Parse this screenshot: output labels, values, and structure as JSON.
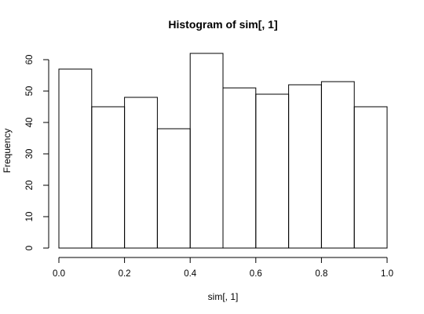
{
  "chart_data": {
    "type": "bar",
    "title": "Histogram of sim[, 1]",
    "xlabel": "sim[, 1]",
    "ylabel": "Frequency",
    "bins": [
      {
        "start": 0.0,
        "end": 0.1,
        "value": 57
      },
      {
        "start": 0.1,
        "end": 0.2,
        "value": 45
      },
      {
        "start": 0.2,
        "end": 0.3,
        "value": 48
      },
      {
        "start": 0.3,
        "end": 0.4,
        "value": 38
      },
      {
        "start": 0.4,
        "end": 0.5,
        "value": 62
      },
      {
        "start": 0.5,
        "end": 0.6,
        "value": 51
      },
      {
        "start": 0.6,
        "end": 0.7,
        "value": 49
      },
      {
        "start": 0.7,
        "end": 0.8,
        "value": 52
      },
      {
        "start": 0.8,
        "end": 0.9,
        "value": 53
      },
      {
        "start": 0.9,
        "end": 1.0,
        "value": 45
      }
    ],
    "xlim": [
      0,
      1
    ],
    "ylim": [
      0,
      60
    ],
    "xticks": [
      0.0,
      0.2,
      0.4,
      0.6,
      0.8,
      1.0
    ],
    "xtick_labels": [
      "0.0",
      "0.2",
      "0.4",
      "0.6",
      "0.8",
      "1.0"
    ],
    "yticks": [
      0,
      10,
      20,
      30,
      40,
      50,
      60
    ],
    "ytick_labels": [
      "0",
      "10",
      "20",
      "30",
      "40",
      "50",
      "60"
    ],
    "grid": false,
    "bar_fill": "#ffffff",
    "bar_stroke": "#000000"
  }
}
